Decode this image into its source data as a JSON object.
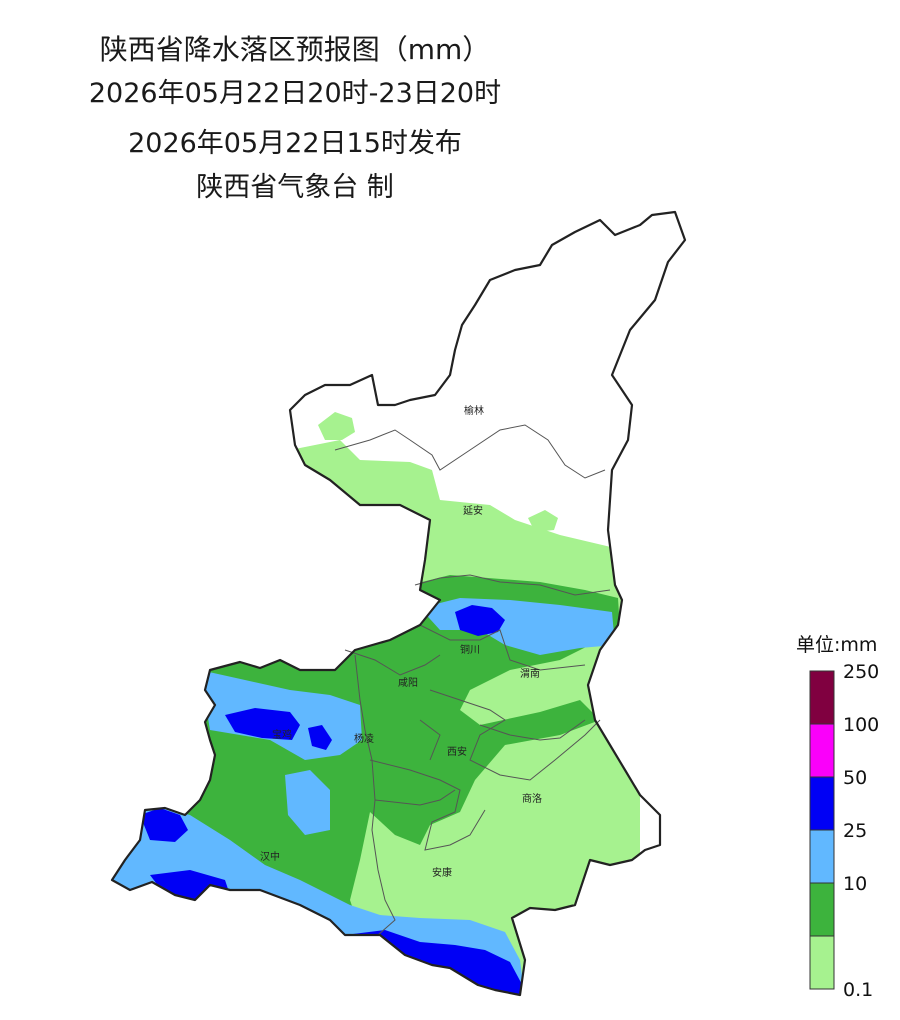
{
  "header": {
    "title": "陕西省降水落区预报图（mm）",
    "period": "2026年05月22日20时-23日20时",
    "issued": "2026年05月22日15时发布",
    "issuer": "陕西省气象台 制"
  },
  "cities": [
    {
      "name": "榆林"
    },
    {
      "name": "延安"
    },
    {
      "name": "铜川"
    },
    {
      "name": "渭南"
    },
    {
      "name": "咸阳"
    },
    {
      "name": "宝鸡"
    },
    {
      "name": "杨凌"
    },
    {
      "name": "西安"
    },
    {
      "name": "商洛"
    },
    {
      "name": "汉中"
    },
    {
      "name": "安康"
    }
  ],
  "legend": {
    "title": "单位:mm",
    "bins": [
      {
        "label": "0.1",
        "color": "#a6f28f"
      },
      {
        "label": "10",
        "color": "#3db33d"
      },
      {
        "label": "25",
        "color": "#61b8ff"
      },
      {
        "label": "50",
        "color": "#0000f5"
      },
      {
        "label": "100",
        "color": "#fa00fa"
      },
      {
        "label": "250",
        "color": "#800040"
      }
    ]
  },
  "colors": {
    "rain_0_1": "#a6f28f",
    "rain_10": "#3db33d",
    "rain_25": "#61b8ff",
    "rain_50": "#0000f5",
    "rain_100": "#fa00fa",
    "rain_250": "#800040",
    "border": "#222222"
  }
}
